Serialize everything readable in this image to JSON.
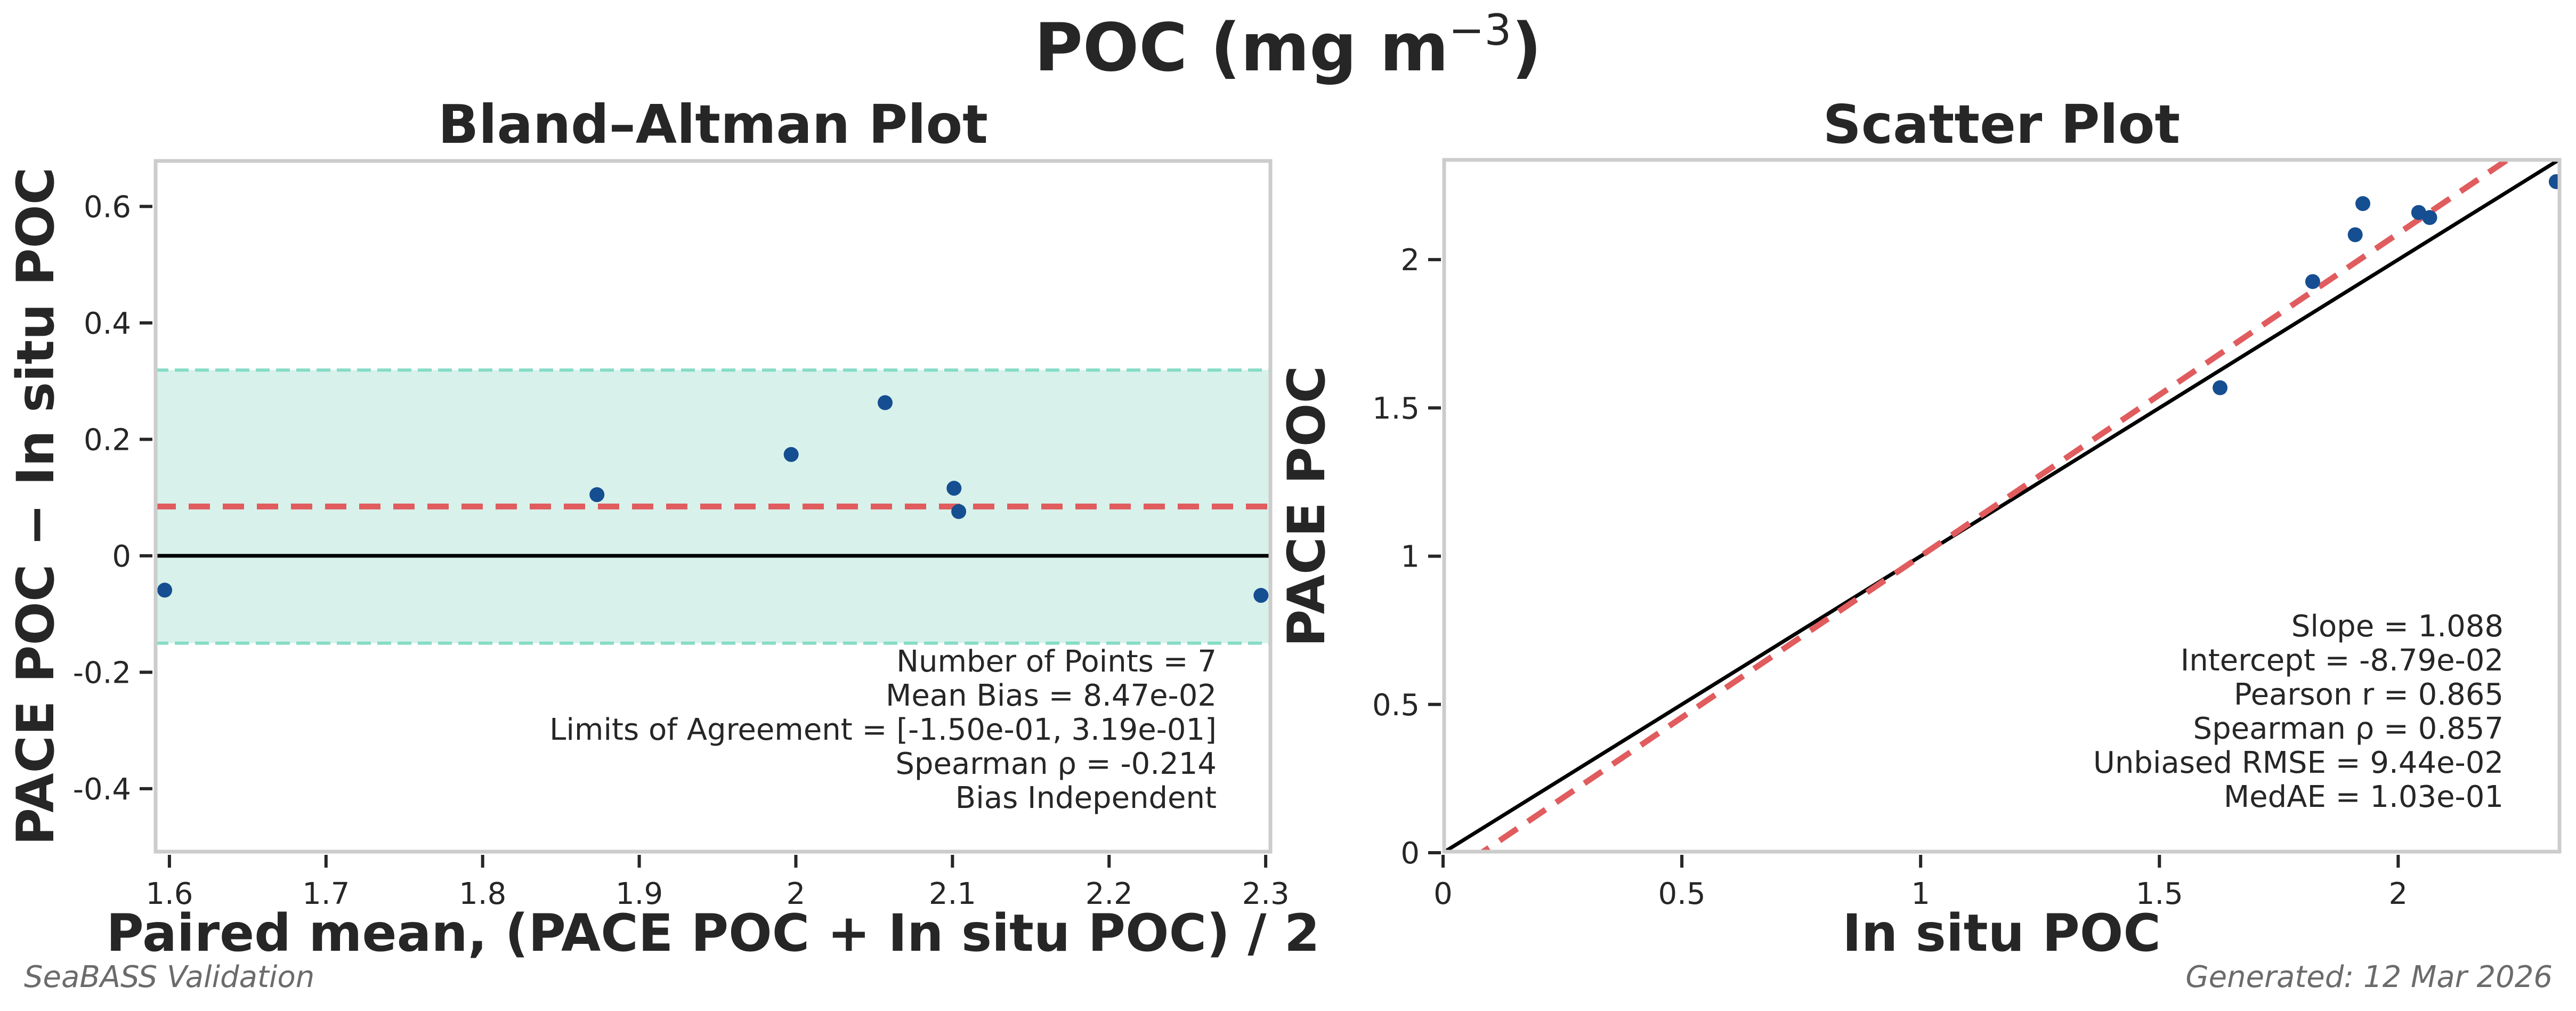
{
  "figure": {
    "suptitle_main": "POC (mg m",
    "suptitle_sup": "−3",
    "suptitle_close": ")",
    "footer_left": "SeaBASS Validation",
    "footer_right": "Generated: 12 Mar 2026"
  },
  "colors": {
    "points": "#154e91",
    "bias_line": "#e05c5e",
    "loa_line": "#86dcc6",
    "loa_fill": "#d8f2eb",
    "zero_line": "#000000",
    "identity_line": "#000000",
    "fit_line": "#e05c5e",
    "frame": "#cccccc"
  },
  "chart_data": [
    {
      "type": "scatter",
      "title": "Bland–Altman Plot",
      "xlabel": "Paired mean, (PACE POC + In situ POC) / 2",
      "ylabel": "PACE POC − In situ POC",
      "xlim": [
        1.5905,
        2.3037
      ],
      "ylim": [
        -0.51,
        0.68
      ],
      "xticks": [
        1.6,
        1.7,
        1.8,
        1.9,
        2.0,
        2.1,
        2.2,
        2.3
      ],
      "xtick_labels": [
        "1.6",
        "1.7",
        "1.8",
        "1.9",
        "2",
        "2.1",
        "2.2",
        "2.3"
      ],
      "yticks": [
        -0.4,
        -0.2,
        0,
        0.2,
        0.4,
        0.6
      ],
      "ytick_labels": [
        "-0.4",
        "-0.2",
        "0",
        "0.2",
        "0.4",
        "0.6"
      ],
      "grid": false,
      "x": [
        1.597,
        1.873,
        1.997,
        2.057,
        2.101,
        2.104,
        2.297
      ],
      "y": [
        -0.059,
        0.105,
        0.174,
        0.263,
        0.116,
        0.076,
        -0.068
      ],
      "mean_bias": 0.0847,
      "loa": [
        -0.15,
        0.319
      ],
      "stats_lines": [
        "Number of Points = 7",
        "Mean Bias = 8.47e-02",
        "Limits of Agreement = [-1.50e-01, 3.19e-01]",
        "Spearman ρ = -0.214",
        "Bias Independent"
      ],
      "stats_position": "bottom-right"
    },
    {
      "type": "scatter",
      "title": "Scatter Plot",
      "xlabel": "In situ POC",
      "ylabel": "PACE POC",
      "xlim": [
        0,
        2.34
      ],
      "ylim": [
        0,
        2.34
      ],
      "xticks": [
        0,
        0.5,
        1,
        1.5,
        2
      ],
      "xtick_labels": [
        "0",
        "0.5",
        "1",
        "1.5",
        "2"
      ],
      "yticks": [
        0,
        0.5,
        1,
        1.5,
        2
      ],
      "ytick_labels": [
        "0",
        "0.5",
        "1",
        "1.5",
        "2"
      ],
      "grid": false,
      "x": [
        1.627,
        1.821,
        1.91,
        1.926,
        2.043,
        2.066,
        2.331
      ],
      "y": [
        1.568,
        1.926,
        2.084,
        2.189,
        2.159,
        2.142,
        2.263
      ],
      "fit": {
        "slope": 1.088,
        "intercept": -0.0879
      },
      "identity_line": true,
      "stats_lines": [
        "Slope = 1.088",
        "Intercept = -8.79e-02",
        "Pearson r = 0.865",
        "Spearman ρ = 0.857",
        "Unbiased RMSE = 9.44e-02",
        "MedAE = 1.03e-01"
      ],
      "stats_position": "bottom-right"
    }
  ]
}
